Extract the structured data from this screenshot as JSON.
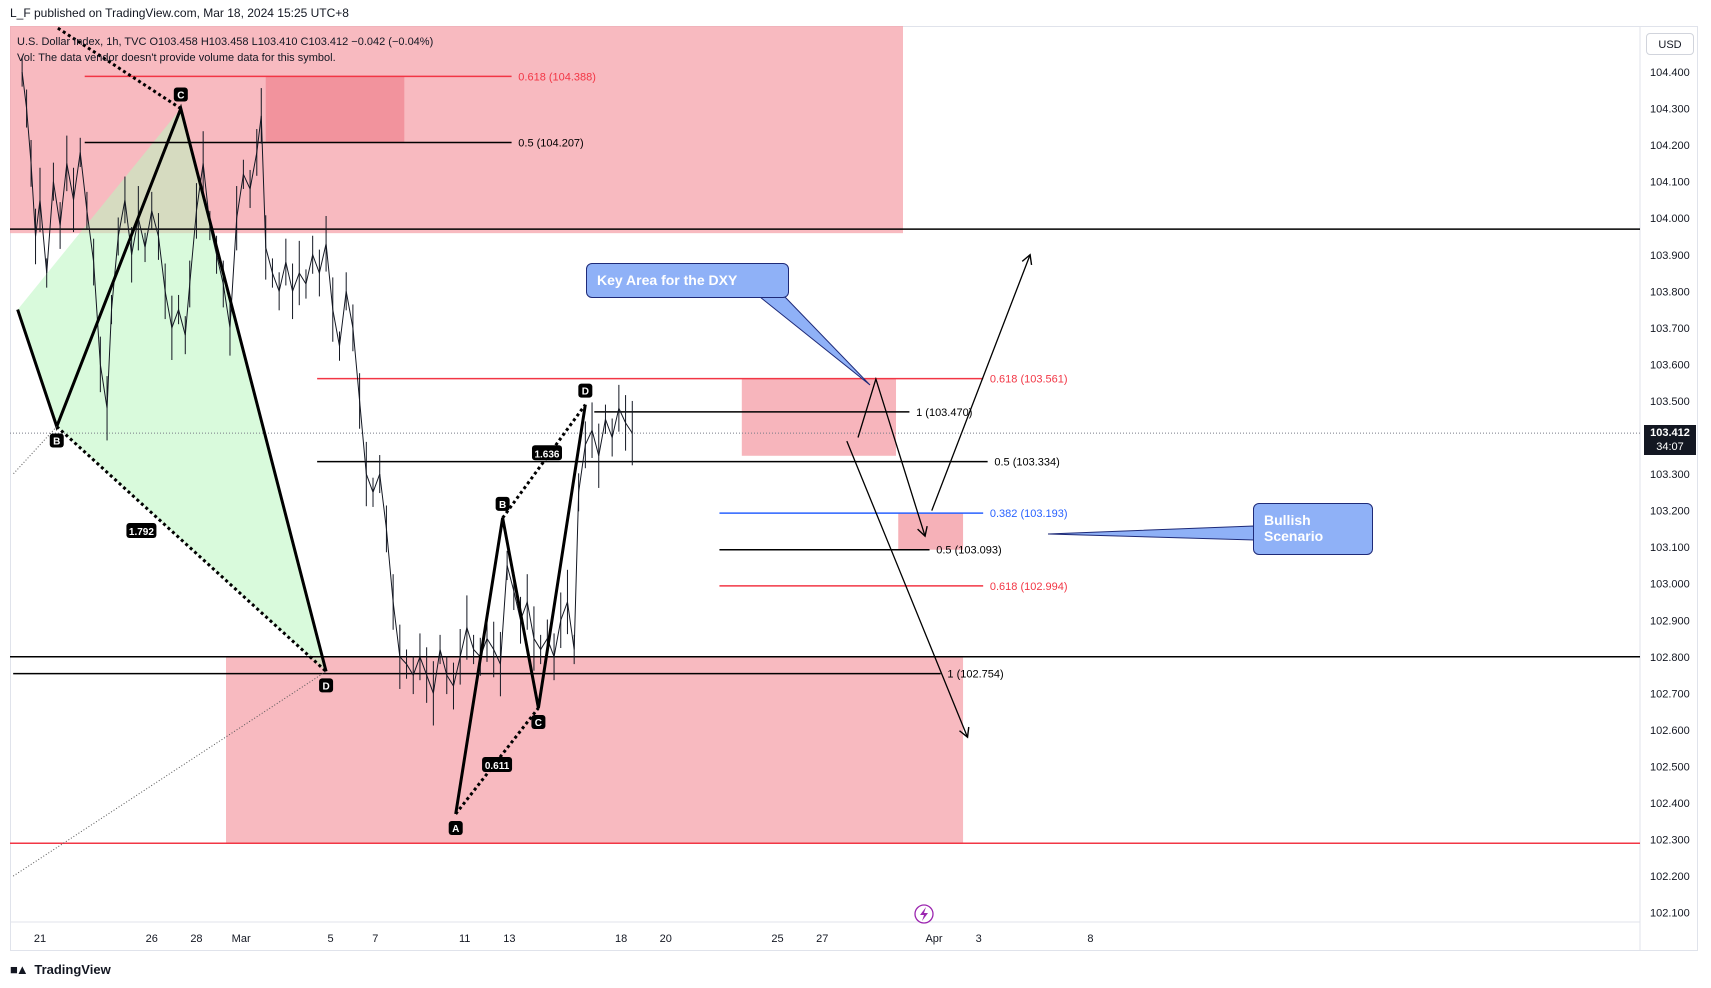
{
  "header": {
    "text": "L_F published on TradingView.com, Mar 18, 2024 15:25 UTC+8"
  },
  "legend": {
    "line1": "U.S. Dollar Index, 1h, TVC  O103.458  H103.458  L103.410  C103.412  −0.042 (−0.04%)",
    "line2": "Vol: The data vendor doesn't provide volume data for this symbol."
  },
  "currency": "USD",
  "last_price": {
    "value": "103.412",
    "countdown": "34:07"
  },
  "footer": {
    "logo_text": "TradingView"
  },
  "callouts": {
    "key_area": "Key Area for the DXY",
    "bullish_line1": "Bullish",
    "bullish_line2": "Scenario"
  },
  "colors": {
    "red_zone": "#f5a3ab",
    "green_zone": "#b9f5c0",
    "red_line": "#f23645",
    "blue_line": "#2962ff",
    "black": "#000000",
    "callout": "#8fb1f7"
  },
  "chart_data": {
    "type": "line",
    "symbol": "U.S. Dollar Index, 1h, TVC",
    "ylim": [
      102.05,
      104.52
    ],
    "y_ticks": [
      104.4,
      104.3,
      104.2,
      104.1,
      104.0,
      103.9,
      103.8,
      103.7,
      103.6,
      103.5,
      103.4,
      103.3,
      103.2,
      103.1,
      103.0,
      102.9,
      102.8,
      102.7,
      102.6,
      102.5,
      102.4,
      102.3,
      102.2,
      102.1
    ],
    "x_ticks": [
      {
        "label": "21",
        "d": 0
      },
      {
        "label": "26",
        "d": 5
      },
      {
        "label": "28",
        "d": 7
      },
      {
        "label": "Mar",
        "d": 9
      },
      {
        "label": "5",
        "d": 13
      },
      {
        "label": "7",
        "d": 15
      },
      {
        "label": "11",
        "d": 19
      },
      {
        "label": "13",
        "d": 21
      },
      {
        "label": "18",
        "d": 26
      },
      {
        "label": "20",
        "d": 28
      },
      {
        "label": "25",
        "d": 33
      },
      {
        "label": "27",
        "d": 35
      },
      {
        "label": "Apr",
        "d": 40
      },
      {
        "label": "3",
        "d": 42
      },
      {
        "label": "8",
        "d": 47
      }
    ],
    "price_path": [
      [
        -0.8,
        104.4
      ],
      [
        -0.6,
        104.3
      ],
      [
        -0.4,
        104.15
      ],
      [
        -0.2,
        103.95
      ],
      [
        0,
        104.05
      ],
      [
        0.3,
        103.85
      ],
      [
        0.6,
        104.1
      ],
      [
        0.9,
        103.98
      ],
      [
        1.2,
        104.15
      ],
      [
        1.5,
        104.05
      ],
      [
        1.8,
        104.18
      ],
      [
        2.1,
        104.02
      ],
      [
        2.4,
        103.88
      ],
      [
        2.7,
        103.6
      ],
      [
        3.0,
        103.48
      ],
      [
        3.2,
        103.75
      ],
      [
        3.5,
        103.95
      ],
      [
        3.8,
        104.05
      ],
      [
        4.1,
        103.9
      ],
      [
        4.4,
        104.0
      ],
      [
        4.7,
        103.92
      ],
      [
        5.0,
        104.02
      ],
      [
        5.3,
        103.95
      ],
      [
        5.6,
        103.8
      ],
      [
        5.9,
        103.7
      ],
      [
        6.2,
        103.75
      ],
      [
        6.5,
        103.68
      ],
      [
        6.7,
        103.82
      ],
      [
        7.0,
        104.02
      ],
      [
        7.3,
        104.15
      ],
      [
        7.6,
        103.98
      ],
      [
        7.9,
        103.9
      ],
      [
        8.2,
        103.82
      ],
      [
        8.5,
        103.7
      ],
      [
        8.8,
        104.0
      ],
      [
        9.1,
        104.12
      ],
      [
        9.4,
        104.08
      ],
      [
        9.7,
        104.18
      ],
      [
        9.9,
        104.28
      ],
      [
        10.1,
        103.92
      ],
      [
        10.4,
        103.85
      ],
      [
        10.7,
        103.8
      ],
      [
        11.0,
        103.88
      ],
      [
        11.3,
        103.8
      ],
      [
        11.6,
        103.85
      ],
      [
        11.9,
        103.82
      ],
      [
        12.2,
        103.9
      ],
      [
        12.5,
        103.85
      ],
      [
        12.8,
        103.93
      ],
      [
        13.1,
        103.75
      ],
      [
        13.4,
        103.65
      ],
      [
        13.7,
        103.8
      ],
      [
        14.0,
        103.7
      ],
      [
        14.3,
        103.5
      ],
      [
        14.6,
        103.3
      ],
      [
        14.9,
        103.25
      ],
      [
        15.2,
        103.3
      ],
      [
        15.5,
        103.15
      ],
      [
        15.8,
        102.95
      ],
      [
        16.1,
        102.8
      ],
      [
        16.4,
        102.78
      ],
      [
        16.7,
        102.75
      ],
      [
        17.0,
        102.8
      ],
      [
        17.3,
        102.75
      ],
      [
        17.6,
        102.7
      ],
      [
        17.9,
        102.82
      ],
      [
        18.2,
        102.75
      ],
      [
        18.5,
        102.72
      ],
      [
        18.8,
        102.8
      ],
      [
        19.1,
        102.88
      ],
      [
        19.4,
        102.82
      ],
      [
        19.7,
        102.8
      ],
      [
        20.0,
        102.85
      ],
      [
        20.3,
        102.82
      ],
      [
        20.6,
        102.78
      ],
      [
        20.9,
        103.05
      ],
      [
        21.2,
        102.98
      ],
      [
        21.5,
        102.9
      ],
      [
        21.8,
        102.95
      ],
      [
        22.1,
        102.85
      ],
      [
        22.4,
        102.82
      ],
      [
        22.7,
        102.85
      ],
      [
        23.0,
        102.8
      ],
      [
        23.3,
        102.9
      ],
      [
        23.6,
        102.95
      ],
      [
        23.9,
        102.82
      ],
      [
        24.1,
        103.25
      ],
      [
        24.4,
        103.38
      ],
      [
        24.7,
        103.42
      ],
      [
        25.0,
        103.35
      ],
      [
        25.3,
        103.45
      ],
      [
        25.6,
        103.4
      ],
      [
        25.9,
        103.48
      ],
      [
        26.2,
        103.44
      ],
      [
        26.5,
        103.412
      ]
    ],
    "harmonic_1": {
      "points": [
        {
          "label": "",
          "d": -1.0,
          "p": 103.75
        },
        {
          "label": "B",
          "d": 0.75,
          "p": 103.43
        },
        {
          "label": "C",
          "d": 6.3,
          "p": 104.3
        },
        {
          "label": "D",
          "d": 12.8,
          "p": 102.76
        }
      ],
      "xd_ratio": "1.792"
    },
    "harmonic_2": {
      "points": [
        {
          "label": "A",
          "d": 18.6,
          "p": 102.37
        },
        {
          "label": "B",
          "d": 20.7,
          "p": 103.18
        },
        {
          "label": "C",
          "d": 22.3,
          "p": 102.66
        },
        {
          "label": "D",
          "d": 24.4,
          "p": 103.49
        }
      ],
      "ab_ratio": "0.611",
      "cd_ratio": "1.636"
    },
    "fib_levels": [
      {
        "label": "0.618 (104.388)",
        "value": 104.388,
        "color": "red"
      },
      {
        "label": "0.5 (104.207)",
        "value": 104.207,
        "color": "black"
      },
      {
        "label": "0.618 (103.561)",
        "value": 103.561,
        "color": "red"
      },
      {
        "label": "1 (103.470)",
        "value": 103.47,
        "color": "black"
      },
      {
        "label": "0.5 (103.334)",
        "value": 103.334,
        "color": "black"
      },
      {
        "label": "0.382 (103.193)",
        "value": 103.193,
        "color": "blue"
      },
      {
        "label": "0.5 (103.093)",
        "value": 103.093,
        "color": "black"
      },
      {
        "label": "0.618 (102.994)",
        "value": 102.994,
        "color": "red"
      },
      {
        "label": "1 (102.754)",
        "value": 102.754,
        "color": "black"
      }
    ],
    "horizontal_levels": [
      {
        "value": 103.97,
        "color": "black"
      },
      {
        "value": 102.8,
        "color": "black"
      },
      {
        "value": 102.29,
        "color": "red"
      }
    ]
  }
}
